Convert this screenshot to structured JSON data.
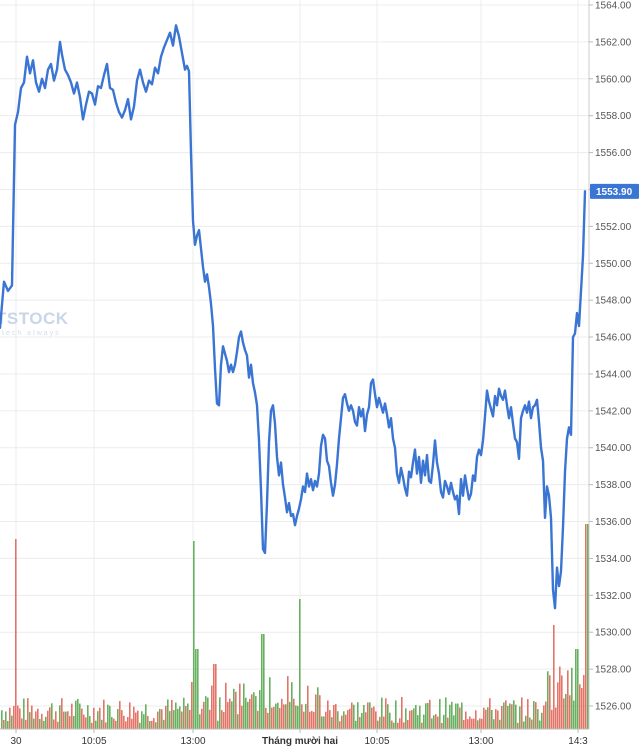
{
  "chart_data": {
    "type": "line",
    "y_axis": {
      "ticks": [
        "1564.00",
        "1562.00",
        "1560.00",
        "1558.00",
        "1556.00",
        "1554.00",
        "1552.00",
        "1550.00",
        "1548.00",
        "1546.00",
        "1544.00",
        "1542.00",
        "1540.00",
        "1538.00",
        "1536.00",
        "1534.00",
        "1532.00",
        "1530.00",
        "1528.00",
        "1526.00"
      ],
      "ylim": [
        1525.4,
        1564.7
      ],
      "position": "right",
      "grid": true
    },
    "x_axis": {
      "ticks": [
        "30",
        "10:05",
        "13:00",
        "Tháng mười hai",
        "10:05",
        "13:00",
        "14:3"
      ],
      "grid": true
    },
    "last_price": "1553.90",
    "last_price_value": 1553.9,
    "line_color": "#3a75d4",
    "up_color": "#58a84f",
    "down_color": "#e06559",
    "watermark": {
      "main": "TSTOCK",
      "sub": "tech always"
    },
    "price_series": [
      [
        0,
        1546.5
      ],
      [
        4,
        1549
      ],
      [
        8,
        1548.5
      ],
      [
        12,
        1548.8
      ],
      [
        15,
        1557.5
      ],
      [
        18,
        1558.2
      ],
      [
        21,
        1559.5
      ],
      [
        24,
        1559.8
      ],
      [
        27,
        1561.2
      ],
      [
        30,
        1560.3
      ],
      [
        33,
        1561
      ],
      [
        36,
        1559.8
      ],
      [
        39,
        1559.3
      ],
      [
        42,
        1560
      ],
      [
        45,
        1559.5
      ],
      [
        48,
        1560.5
      ],
      [
        51,
        1560.8
      ],
      [
        54,
        1559.9
      ],
      [
        57,
        1560.5
      ],
      [
        60,
        1562
      ],
      [
        62,
        1561.3
      ],
      [
        65,
        1560.5
      ],
      [
        68,
        1560.2
      ],
      [
        71,
        1559.8
      ],
      [
        74,
        1559.2
      ],
      [
        77,
        1559.8
      ],
      [
        80,
        1559
      ],
      [
        83,
        1557.8
      ],
      [
        86,
        1558.6
      ],
      [
        89,
        1559.3
      ],
      [
        92,
        1559.2
      ],
      [
        95,
        1558.6
      ],
      [
        98,
        1559.6
      ],
      [
        101,
        1559.5
      ],
      [
        104,
        1560.2
      ],
      [
        107,
        1560.8
      ],
      [
        110,
        1559.5
      ],
      [
        113,
        1559.4
      ],
      [
        116,
        1558.7
      ],
      [
        119,
        1558.2
      ],
      [
        122,
        1557.9
      ],
      [
        125,
        1558.3
      ],
      [
        128,
        1558.9
      ],
      [
        131,
        1557.8
      ],
      [
        134,
        1558.5
      ],
      [
        137,
        1559.9
      ],
      [
        140,
        1560.5
      ],
      [
        143,
        1559.8
      ],
      [
        146,
        1559.3
      ],
      [
        149,
        1559.9
      ],
      [
        152,
        1559.7
      ],
      [
        155,
        1560.6
      ],
      [
        158,
        1560.3
      ],
      [
        161,
        1561.2
      ],
      [
        164,
        1561.7
      ],
      [
        167,
        1562.1
      ],
      [
        170,
        1562.5
      ],
      [
        173,
        1561.8
      ],
      [
        176,
        1562.9
      ],
      [
        179,
        1562.3
      ],
      [
        182,
        1561.4
      ],
      [
        185,
        1560.5
      ],
      [
        187,
        1560.7
      ],
      [
        189,
        1560.4
      ],
      [
        191,
        1556
      ],
      [
        193,
        1552.3
      ],
      [
        195,
        1551
      ],
      [
        197,
        1551.5
      ],
      [
        199,
        1551.8
      ],
      [
        201,
        1550.8
      ],
      [
        203,
        1549.8
      ],
      [
        205,
        1549
      ],
      [
        207,
        1549.4
      ],
      [
        209,
        1548.7
      ],
      [
        211,
        1547.8
      ],
      [
        213,
        1546.6
      ],
      [
        215,
        1544.3
      ],
      [
        217,
        1542.4
      ],
      [
        219,
        1542.3
      ],
      [
        221,
        1544.5
      ],
      [
        223,
        1545.5
      ],
      [
        225,
        1545.1
      ],
      [
        227,
        1544.7
      ],
      [
        229,
        1544.1
      ],
      [
        231,
        1544.5
      ],
      [
        233,
        1544.1
      ],
      [
        235,
        1544.5
      ],
      [
        237,
        1545.2
      ],
      [
        239,
        1546
      ],
      [
        241,
        1546.3
      ],
      [
        243,
        1545.7
      ],
      [
        245,
        1545.3
      ],
      [
        247,
        1545
      ],
      [
        249,
        1543.8
      ],
      [
        251,
        1544.5
      ],
      [
        253,
        1543.5
      ],
      [
        255,
        1543
      ],
      [
        257,
        1542.3
      ],
      [
        259,
        1540.4
      ],
      [
        261,
        1537.7
      ],
      [
        263,
        1534.5
      ],
      [
        265,
        1534.3
      ],
      [
        267,
        1537
      ],
      [
        269,
        1540.3
      ],
      [
        271,
        1542
      ],
      [
        273,
        1542.3
      ],
      [
        275,
        1541.3
      ],
      [
        277,
        1539.5
      ],
      [
        279,
        1538.5
      ],
      [
        281,
        1539.2
      ],
      [
        283,
        1538
      ],
      [
        285,
        1537.3
      ],
      [
        287,
        1536.5
      ],
      [
        289,
        1537
      ],
      [
        291,
        1536.3
      ],
      [
        293,
        1536.4
      ],
      [
        295,
        1535.8
      ],
      [
        297,
        1536.3
      ],
      [
        299,
        1536.7
      ],
      [
        301,
        1537.2
      ],
      [
        303,
        1537.9
      ],
      [
        305,
        1537.6
      ],
      [
        307,
        1538.6
      ],
      [
        309,
        1537.9
      ],
      [
        311,
        1538.3
      ],
      [
        313,
        1537.7
      ],
      [
        315,
        1538.2
      ],
      [
        317,
        1537.9
      ],
      [
        319,
        1538.6
      ],
      [
        321,
        1540.1
      ],
      [
        323,
        1540.7
      ],
      [
        325,
        1540.5
      ],
      [
        327,
        1539.3
      ],
      [
        329,
        1539
      ],
      [
        331,
        1538.1
      ],
      [
        333,
        1537.4
      ],
      [
        335,
        1538
      ],
      [
        337,
        1539.1
      ],
      [
        339,
        1540.5
      ],
      [
        341,
        1541.6
      ],
      [
        343,
        1542.7
      ],
      [
        345,
        1542.9
      ],
      [
        347,
        1542.4
      ],
      [
        349,
        1542
      ],
      [
        351,
        1542.3
      ],
      [
        353,
        1542
      ],
      [
        355,
        1541.4
      ],
      [
        357,
        1541.2
      ],
      [
        359,
        1542.2
      ],
      [
        361,
        1541.7
      ],
      [
        363,
        1542.1
      ],
      [
        365,
        1540.9
      ],
      [
        367,
        1541.8
      ],
      [
        369,
        1542.2
      ],
      [
        371,
        1543.5
      ],
      [
        373,
        1543.7
      ],
      [
        375,
        1542.9
      ],
      [
        377,
        1542.2
      ],
      [
        379,
        1542.7
      ],
      [
        381,
        1542.3
      ],
      [
        383,
        1541.9
      ],
      [
        385,
        1542.4
      ],
      [
        387,
        1541.8
      ],
      [
        389,
        1541.1
      ],
      [
        391,
        1541.6
      ],
      [
        393,
        1540.5
      ],
      [
        395,
        1540
      ],
      [
        397,
        1538.6
      ],
      [
        399,
        1538.1
      ],
      [
        401,
        1538.9
      ],
      [
        403,
        1538.4
      ],
      [
        405,
        1537.8
      ],
      [
        407,
        1537.4
      ],
      [
        409,
        1538.7
      ],
      [
        411,
        1538.4
      ],
      [
        413,
        1539.2
      ],
      [
        415,
        1539.9
      ],
      [
        417,
        1538.6
      ],
      [
        419,
        1539.5
      ],
      [
        421,
        1538.1
      ],
      [
        423,
        1539.3
      ],
      [
        425,
        1538.5
      ],
      [
        427,
        1539.6
      ],
      [
        429,
        1538.2
      ],
      [
        431,
        1538.1
      ],
      [
        433,
        1539.1
      ],
      [
        435,
        1540.4
      ],
      [
        437,
        1539.2
      ],
      [
        439,
        1538.6
      ],
      [
        441,
        1537.6
      ],
      [
        443,
        1537.3
      ],
      [
        445,
        1538.2
      ],
      [
        447,
        1537.9
      ],
      [
        449,
        1537.5
      ],
      [
        451,
        1538.1
      ],
      [
        453,
        1537.6
      ],
      [
        455,
        1537.2
      ],
      [
        457,
        1537.4
      ],
      [
        459,
        1536.4
      ],
      [
        461,
        1538.3
      ],
      [
        463,
        1537.4
      ],
      [
        465,
        1538.5
      ],
      [
        467,
        1537.8
      ],
      [
        469,
        1537.2
      ],
      [
        471,
        1537.5
      ],
      [
        473,
        1538.5
      ],
      [
        475,
        1538.2
      ],
      [
        477,
        1539.5
      ],
      [
        479,
        1539.9
      ],
      [
        481,
        1539.6
      ],
      [
        483,
        1540.4
      ],
      [
        485,
        1541.7
      ],
      [
        487,
        1543.1
      ],
      [
        489,
        1542.5
      ],
      [
        491,
        1542.1
      ],
      [
        493,
        1541.7
      ],
      [
        495,
        1542.8
      ],
      [
        497,
        1542.3
      ],
      [
        499,
        1543.2
      ],
      [
        501,
        1542.8
      ],
      [
        503,
        1542.6
      ],
      [
        505,
        1543.1
      ],
      [
        507,
        1542.3
      ],
      [
        509,
        1541.6
      ],
      [
        511,
        1542.2
      ],
      [
        513,
        1541.3
      ],
      [
        515,
        1540.5
      ],
      [
        517,
        1540.3
      ],
      [
        519,
        1539.4
      ],
      [
        521,
        1541.6
      ],
      [
        523,
        1542
      ],
      [
        525,
        1542.3
      ],
      [
        527,
        1541.9
      ],
      [
        529,
        1542.5
      ],
      [
        531,
        1541.6
      ],
      [
        533,
        1542.2
      ],
      [
        535,
        1542.3
      ],
      [
        537,
        1542.6
      ],
      [
        539,
        1541.4
      ],
      [
        541,
        1540
      ],
      [
        543,
        1539.3
      ],
      [
        545,
        1536.2
      ],
      [
        547,
        1537.9
      ],
      [
        549,
        1537.4
      ],
      [
        551,
        1536.2
      ],
      [
        553,
        1532.3
      ],
      [
        555,
        1531.3
      ],
      [
        557,
        1533.5
      ],
      [
        559,
        1532.5
      ],
      [
        561,
        1533.3
      ],
      [
        563,
        1535.7
      ],
      [
        565,
        1538.7
      ],
      [
        567,
        1540.5
      ],
      [
        569,
        1541.1
      ],
      [
        571,
        1540.7
      ],
      [
        573,
        1546
      ],
      [
        575,
        1546.2
      ],
      [
        577,
        1547.3
      ],
      [
        579,
        1546.6
      ],
      [
        581,
        1548.5
      ],
      [
        583,
        1550.4
      ],
      [
        585,
        1553.9
      ]
    ]
  }
}
